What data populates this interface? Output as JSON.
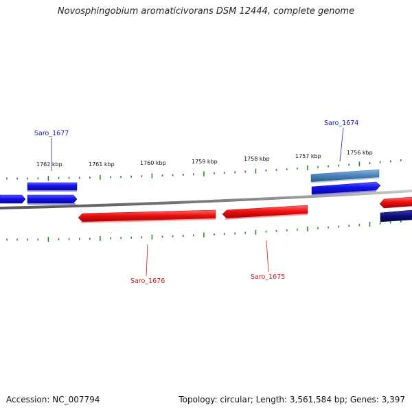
{
  "title": "Novosphingobium aromaticivorans DSM 12444, complete genome",
  "accession_text": "Accession: NC_007794",
  "summary_text": "Topology: circular; Length: 3,561,584 bp; Genes: 3,397",
  "kbp_labels": [
    "1762 kbp",
    "1761 kbp",
    "1760 kbp",
    "1759 kbp",
    "1758 kbp",
    "1757 kbp",
    "1756 kbp"
  ],
  "gene_labels": [
    {
      "name": "Saro_1677",
      "color": "#1515c8"
    },
    {
      "name": "Saro_1674",
      "color": "#1515c8"
    },
    {
      "name": "Saro_1676",
      "color": "#d01818"
    },
    {
      "name": "Saro_1675",
      "color": "#d01818"
    }
  ],
  "colors": {
    "forward_gene": "#1010e8",
    "forward_gene_alt": "#4a86be",
    "forward_gene_dark": "#0c0c7a",
    "reverse_gene": "#ee1010",
    "backbone": "#888888",
    "ticks": "#2a8a2a"
  }
}
